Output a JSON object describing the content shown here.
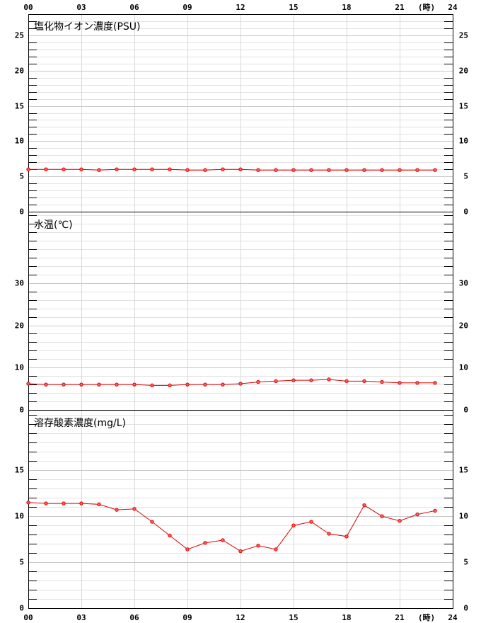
{
  "chart_data": [
    {
      "type": "line",
      "title": "塩化物イオン濃度(PSU)",
      "xlabel": "(時)",
      "xlabel_side": "top",
      "x": [
        0,
        1,
        2,
        3,
        4,
        5,
        6,
        7,
        8,
        9,
        10,
        11,
        12,
        13,
        14,
        15,
        16,
        17,
        18,
        19,
        20,
        21,
        22,
        23
      ],
      "values": [
        6.0,
        6.0,
        6.0,
        6.0,
        5.9,
        6.0,
        6.0,
        6.0,
        6.0,
        5.9,
        5.9,
        6.0,
        6.0,
        5.9,
        5.9,
        5.9,
        5.9,
        5.9,
        5.9,
        5.9,
        5.9,
        5.9,
        5.9,
        5.9
      ],
      "color": "#e00000",
      "xlim": [
        0,
        24
      ],
      "xticks": [
        {
          "value": 0,
          "label": "00"
        },
        {
          "value": 3,
          "label": "03"
        },
        {
          "value": 6,
          "label": "06"
        },
        {
          "value": 9,
          "label": "09"
        },
        12,
        15,
        18,
        21,
        24
      ],
      "ylim": [
        0,
        28
      ],
      "yticks": [
        0,
        5,
        10,
        15,
        20,
        25
      ],
      "yminor": 1,
      "grid": true
    },
    {
      "type": "line",
      "title": "水温(℃)",
      "x": [
        0,
        1,
        2,
        3,
        4,
        5,
        6,
        7,
        8,
        9,
        10,
        11,
        12,
        13,
        14,
        15,
        16,
        17,
        18,
        19,
        20,
        21,
        22,
        23
      ],
      "values": [
        6.2,
        6.0,
        6.0,
        6.0,
        6.0,
        6.0,
        6.0,
        5.8,
        5.8,
        6.0,
        6.0,
        6.0,
        6.2,
        6.6,
        6.8,
        7.0,
        7.0,
        7.2,
        6.8,
        6.8,
        6.6,
        6.4,
        6.4,
        6.4
      ],
      "color": "#e00000",
      "xlim": [
        0,
        24
      ],
      "xticks": [
        {
          "value": 0,
          "label": "00"
        },
        {
          "value": 3,
          "label": "03"
        },
        {
          "value": 6,
          "label": "06"
        },
        {
          "value": 9,
          "label": "09"
        },
        12,
        15,
        18,
        21,
        24
      ],
      "ylim": [
        0,
        46.7
      ],
      "yticks": [
        0,
        10,
        20,
        30
      ],
      "yminor": 2,
      "grid": true
    },
    {
      "type": "line",
      "title": "溶存酸素濃度(mg/L)",
      "xlabel": "(時)",
      "xlabel_side": "bottom",
      "x": [
        0,
        1,
        2,
        3,
        4,
        5,
        6,
        7,
        8,
        9,
        10,
        11,
        12,
        13,
        14,
        15,
        16,
        17,
        18,
        19,
        20,
        21,
        22,
        23
      ],
      "values": [
        11.5,
        11.4,
        11.4,
        11.4,
        11.3,
        10.7,
        10.8,
        9.4,
        7.9,
        6.4,
        7.1,
        7.4,
        6.2,
        6.8,
        6.4,
        9.0,
        9.4,
        8.1,
        7.8,
        11.2,
        10.0,
        9.5,
        10.2,
        10.6
      ],
      "color": "#e00000",
      "xlim": [
        0,
        24
      ],
      "xticks": [
        {
          "value": 0,
          "label": "00"
        },
        {
          "value": 3,
          "label": "03"
        },
        {
          "value": 6,
          "label": "06"
        },
        {
          "value": 9,
          "label": "09"
        },
        12,
        15,
        18,
        21,
        24
      ],
      "ylim": [
        0,
        21.5
      ],
      "yticks": [
        0,
        5,
        10,
        15
      ],
      "yminor": 1,
      "grid": true
    }
  ]
}
